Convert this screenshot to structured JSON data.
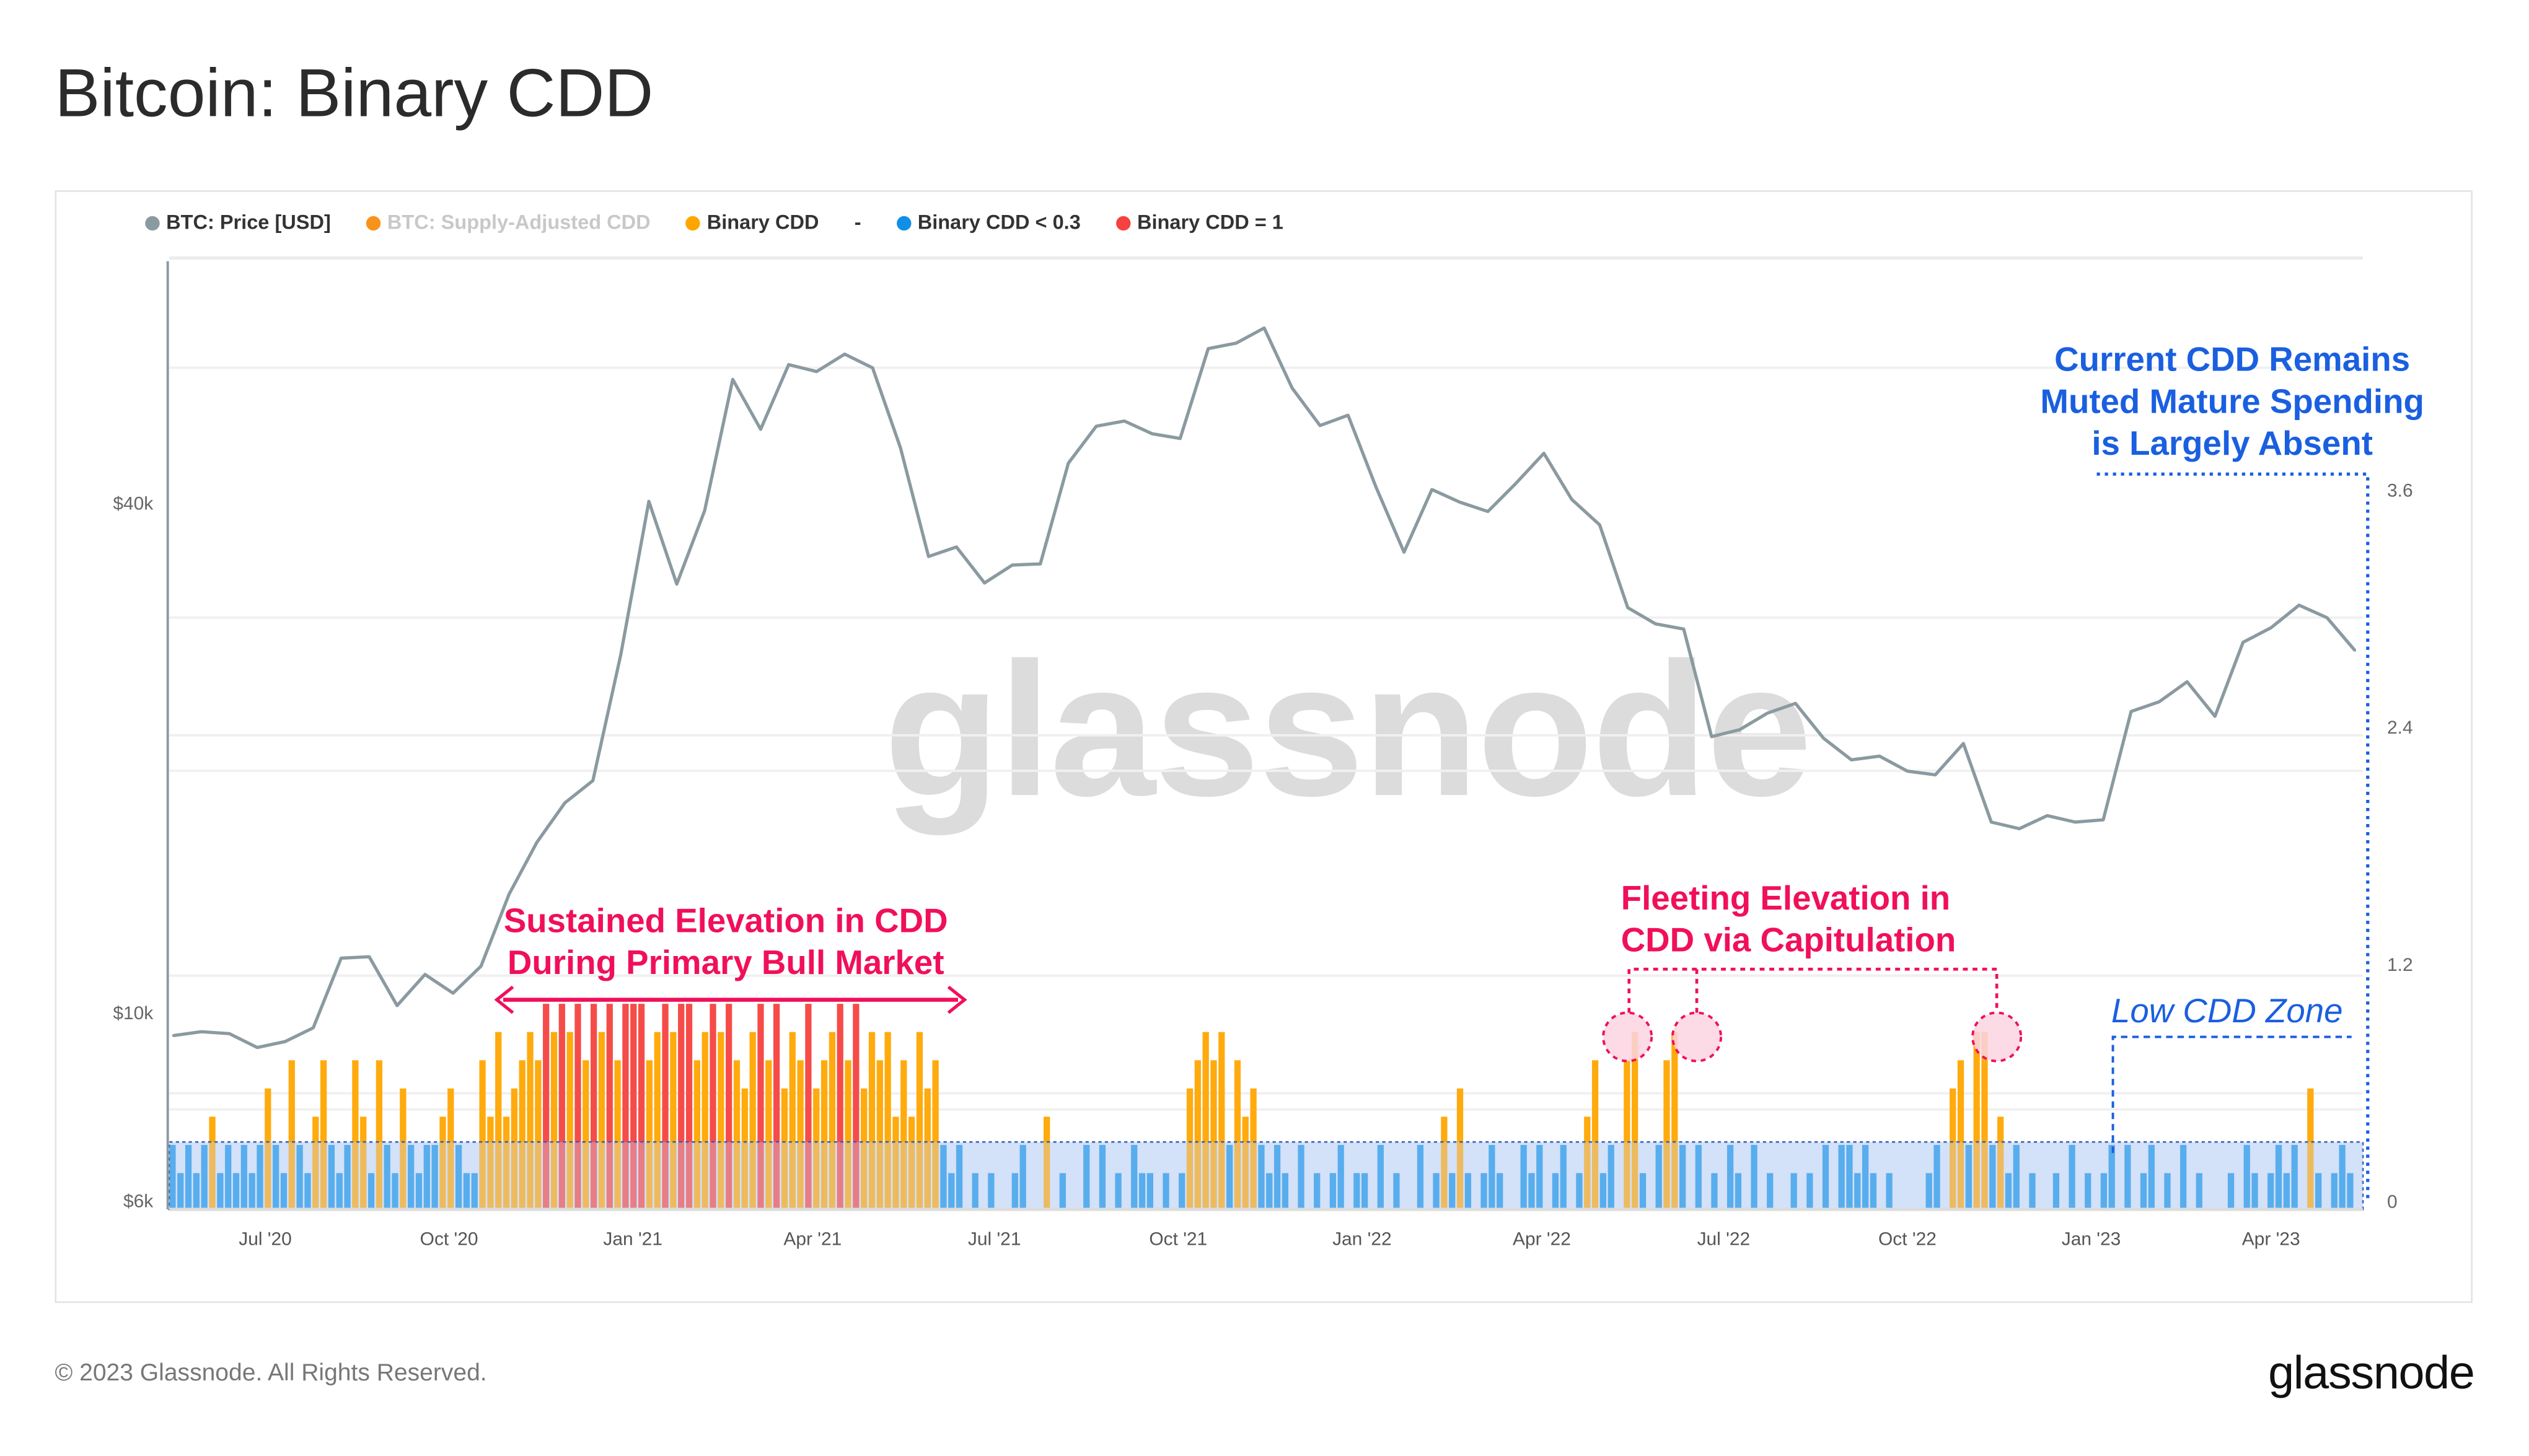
{
  "title": "Bitcoin: Binary CDD",
  "footer": "© 2023 Glassnode. All Rights Reserved.",
  "logo": "glassnode",
  "watermark": "glassnode",
  "legend": [
    {
      "label": "BTC: Price [USD]",
      "color": "#8a9aa0",
      "muted": false
    },
    {
      "label": "BTC: Supply-Adjusted CDD",
      "color": "#f7931a",
      "muted": true
    },
    {
      "label": "Binary CDD",
      "color": "#ffa500",
      "muted": false
    },
    {
      "label": "-",
      "color": "",
      "muted": false
    },
    {
      "label": "Binary CDD < 0.3",
      "color": "#0f8fe8",
      "muted": false
    },
    {
      "label": "Binary CDD = 1",
      "color": "#f5423f",
      "muted": false
    }
  ],
  "annotations": {
    "current_1": "Current CDD Remains",
    "current_2": "Muted Mature Spending",
    "current_3": "is Largely Absent",
    "sustained_1": "Sustained Elevation in CDD",
    "sustained_2": "During Primary Bull Market",
    "fleeting_1": "Fleeting Elevation in",
    "fleeting_2": "CDD via Capitulation",
    "low_zone": "Low CDD Zone"
  },
  "colors": {
    "price": "#8a9aa0",
    "orange": "#ffa500",
    "blue": "#0f8fe8",
    "red": "#f5423f",
    "annotation_pink": "#f0105a",
    "annotation_blue": "#1a5fe0",
    "zone_fill": "#d6e4fb"
  },
  "chart_data": {
    "type": "bar+line",
    "xlim": [
      "2020-05-14",
      "2023-05-17"
    ],
    "x_ticks": [
      "Jul '20",
      "Oct '20",
      "Jan '21",
      "Apr '21",
      "Jul '21",
      "Oct '21",
      "Jan '22",
      "Apr '22",
      "Jul '22",
      "Oct '22",
      "Jan '23",
      "Apr '23"
    ],
    "x_tick_dates": [
      "2020-07-01",
      "2020-10-01",
      "2021-01-01",
      "2021-04-01",
      "2021-07-01",
      "2021-10-01",
      "2022-01-01",
      "2022-04-01",
      "2022-07-01",
      "2022-10-01",
      "2023-01-01",
      "2023-04-01"
    ],
    "left_axis": {
      "scale": "log",
      "ticks": [
        "$40k",
        "$10k",
        "$6k"
      ],
      "tick_values": [
        40000,
        10000,
        6000
      ]
    },
    "right_axis": {
      "scale": "linear",
      "ticks": [
        "3.6",
        "2.4",
        "1.2",
        "0"
      ],
      "tick_values": [
        3.6,
        2.4,
        1.2,
        0
      ],
      "ylim": [
        0,
        4.3
      ]
    },
    "low_cdd_threshold": 0.3,
    "price": {
      "name": "BTC: Price [USD]",
      "points": [
        [
          "2020-05-16",
          9400
        ],
        [
          "2020-05-30",
          9500
        ],
        [
          "2020-06-13",
          9450
        ],
        [
          "2020-06-27",
          9100
        ],
        [
          "2020-07-11",
          9250
        ],
        [
          "2020-07-25",
          9600
        ],
        [
          "2020-08-08",
          11600
        ],
        [
          "2020-08-22",
          11650
        ],
        [
          "2020-09-05",
          10200
        ],
        [
          "2020-09-19",
          11100
        ],
        [
          "2020-10-03",
          10550
        ],
        [
          "2020-10-17",
          11350
        ],
        [
          "2020-10-31",
          13800
        ],
        [
          "2020-11-14",
          15900
        ],
        [
          "2020-11-28",
          17700
        ],
        [
          "2020-12-12",
          18800
        ],
        [
          "2020-12-26",
          26500
        ],
        [
          "2021-01-09",
          40200
        ],
        [
          "2021-01-23",
          32100
        ],
        [
          "2021-02-06",
          39200
        ],
        [
          "2021-02-20",
          56000
        ],
        [
          "2021-03-06",
          48900
        ],
        [
          "2021-03-20",
          58300
        ],
        [
          "2021-04-03",
          57200
        ],
        [
          "2021-04-17",
          60000
        ],
        [
          "2021-05-01",
          57800
        ],
        [
          "2021-05-15",
          46500
        ],
        [
          "2021-05-29",
          34600
        ],
        [
          "2021-06-12",
          35500
        ],
        [
          "2021-06-26",
          32200
        ],
        [
          "2021-07-10",
          33800
        ],
        [
          "2021-07-24",
          33900
        ],
        [
          "2021-08-07",
          44600
        ],
        [
          "2021-08-21",
          49300
        ],
        [
          "2021-09-04",
          50000
        ],
        [
          "2021-09-18",
          48300
        ],
        [
          "2021-10-02",
          47700
        ],
        [
          "2021-10-16",
          60900
        ],
        [
          "2021-10-30",
          61800
        ],
        [
          "2021-11-13",
          64400
        ],
        [
          "2021-11-27",
          54700
        ],
        [
          "2021-12-11",
          49400
        ],
        [
          "2021-12-25",
          50800
        ],
        [
          "2022-01-08",
          41800
        ],
        [
          "2022-01-22",
          35000
        ],
        [
          "2022-02-05",
          41500
        ],
        [
          "2022-02-19",
          40100
        ],
        [
          "2022-03-05",
          39100
        ],
        [
          "2022-03-19",
          42200
        ],
        [
          "2022-04-02",
          45800
        ],
        [
          "2022-04-16",
          40400
        ],
        [
          "2022-04-30",
          37700
        ],
        [
          "2022-05-14",
          30100
        ],
        [
          "2022-05-28",
          28800
        ],
        [
          "2022-06-11",
          28400
        ],
        [
          "2022-06-25",
          21200
        ],
        [
          "2022-07-09",
          21600
        ],
        [
          "2022-07-23",
          22600
        ],
        [
          "2022-08-06",
          23200
        ],
        [
          "2022-08-20",
          21100
        ],
        [
          "2022-09-03",
          19900
        ],
        [
          "2022-09-17",
          20100
        ],
        [
          "2022-10-01",
          19300
        ],
        [
          "2022-10-15",
          19100
        ],
        [
          "2022-10-29",
          20800
        ],
        [
          "2022-11-12",
          16800
        ],
        [
          "2022-11-26",
          16500
        ],
        [
          "2022-12-10",
          17100
        ],
        [
          "2022-12-24",
          16800
        ],
        [
          "2023-01-07",
          16900
        ],
        [
          "2023-01-21",
          22700
        ],
        [
          "2023-02-04",
          23300
        ],
        [
          "2023-02-18",
          24600
        ],
        [
          "2023-03-04",
          22400
        ],
        [
          "2023-03-18",
          27400
        ],
        [
          "2023-04-01",
          28500
        ],
        [
          "2023-04-15",
          30300
        ],
        [
          "2023-04-29",
          29300
        ],
        [
          "2023-05-13",
          26800
        ]
      ]
    },
    "binary_cdd": {
      "name": "Binary CDD",
      "unit": "sevenths (value = level / 7), evenly spaced across xlim",
      "levels": "2121231212124215213521253152142122342115363456576767576757775676775676754675746574567574656353645212010100120030100202010211010145656253421210201012011020100201314101210021201201351205610256202010210201001010202212101000012045266231201001020101202012010201000102101212041012 10"
    }
  }
}
